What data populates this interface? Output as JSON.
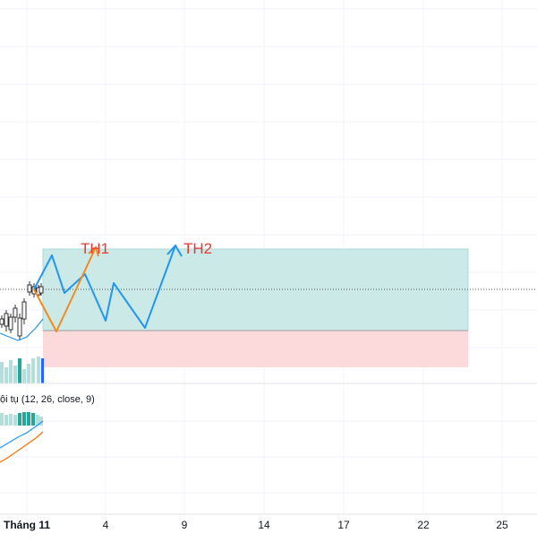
{
  "colors": {
    "grid": "#f0f3fa",
    "pane_divider": "#e0e3eb",
    "profit_zone": "#cbe9e6",
    "profit_border": "#a9dcd6",
    "loss_zone": "#fcd9da",
    "scenario_blue": "#2196f3",
    "scenario_orange": "#f28a1e",
    "annotation_red": "#e53935",
    "candle": "#333333",
    "volume_light": "#b2dfdb",
    "volume_dark": "#26a69a",
    "volume_blue": "#2962ff",
    "macd_blue": "#2196f3",
    "macd_orange": "#ff6d00",
    "axis_text": "#131722"
  },
  "indicator_legend": "ội tụ (12, 26, close, 9)",
  "chart_data": {
    "type": "line",
    "x_axis": {
      "ticks": [
        "Tháng 11",
        "4",
        "9",
        "14",
        "17",
        "22",
        "25"
      ],
      "bold_tick": "Tháng 11"
    },
    "annotations": [
      "TH1",
      "TH2"
    ],
    "zones": [
      {
        "name": "profit",
        "x_from": "Tháng 11",
        "x_to": "25"
      },
      {
        "name": "loss",
        "x_from": "Tháng 11",
        "x_to": "25"
      }
    ],
    "series": [
      {
        "id": "th1-path",
        "label_ref": "TH1",
        "color_key": "scenario_orange"
      },
      {
        "id": "th2-path",
        "label_ref": "TH2",
        "color_key": "scenario_blue"
      }
    ],
    "grid": true,
    "current_price_line": true
  }
}
